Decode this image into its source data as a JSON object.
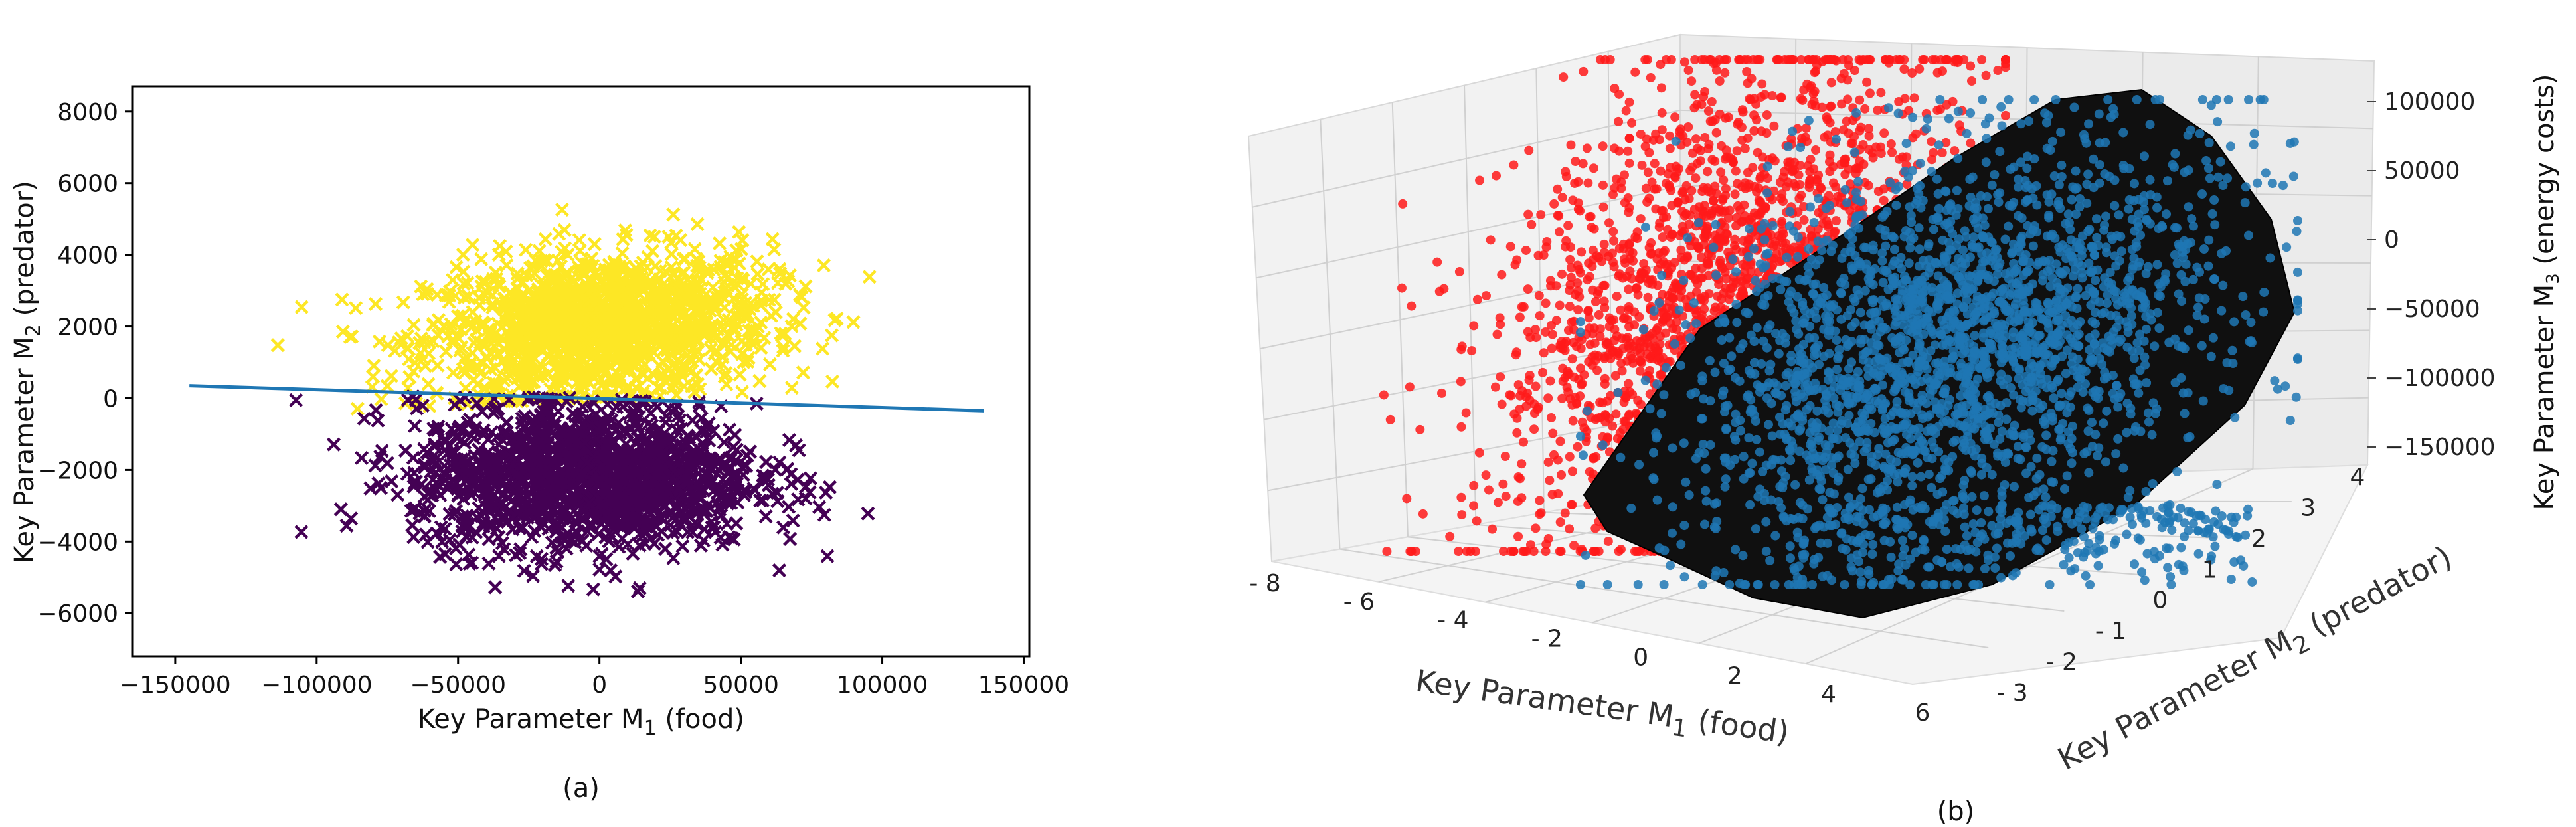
{
  "chart_data": [
    {
      "type": "scatter",
      "panel_label": "(a)",
      "xlabel": "Key Parameter M",
      "xlabel_sub": "1",
      "xlabel_suffix": " (food)",
      "ylabel": "Key Parameter M",
      "ylabel_sub": "2",
      "ylabel_suffix": " (predator)",
      "xlim": [
        -165000,
        152000
      ],
      "ylim": [
        -7200,
        8700
      ],
      "xticks": [
        -150000,
        -100000,
        -50000,
        0,
        50000,
        100000,
        150000
      ],
      "yticks": [
        -6000,
        -4000,
        -2000,
        0,
        2000,
        4000,
        6000,
        8000
      ],
      "xtick_labels": [
        "−150000",
        "−100000",
        "−50000",
        "0",
        "50000",
        "100000",
        "150000"
      ],
      "ytick_labels": [
        "−6000",
        "−4000",
        "−2000",
        "0",
        "2000",
        "4000",
        "6000",
        "8000"
      ],
      "marker": "x",
      "series": [
        {
          "name": "class 1 (above boundary)",
          "color": "#fde725",
          "n_points": 1500,
          "x_center": 0,
          "x_spread": 55000,
          "y_center": 2000,
          "y_spread": 1700,
          "side": "above"
        },
        {
          "name": "class 0 (below boundary)",
          "color": "#440154",
          "n_points": 1500,
          "x_center": -5000,
          "x_spread": 55000,
          "y_center": -2200,
          "y_spread": 1700,
          "side": "below"
        }
      ],
      "decision_boundary": {
        "color": "#1f77b4",
        "x": [
          -145000,
          136000
        ],
        "y": [
          350,
          -350
        ]
      }
    },
    {
      "type": "scatter3d",
      "panel_label": "(b)",
      "xlabel": "Key Parameter M",
      "xlabel_sub": "1",
      "xlabel_suffix": " (food)",
      "ylabel": "Key Parameter M",
      "ylabel_sub": "2",
      "ylabel_suffix": " (predator)",
      "zlabel": "Key Parameter M",
      "zlabel_sub": "3",
      "zlabel_suffix": " (energy costs)",
      "xticks": [
        -8,
        -6,
        -4,
        -2,
        0,
        2,
        4,
        6
      ],
      "xtick_labels": [
        "- 8",
        "- 6",
        "- 4",
        "- 2",
        "0",
        "2",
        "4",
        "6"
      ],
      "yticks": [
        -3,
        -2,
        -1,
        0,
        1,
        2,
        3,
        4
      ],
      "ytick_labels": [
        "- 3",
        "- 2",
        "- 1",
        "0",
        "1",
        "2",
        "3",
        "4"
      ],
      "zticks": [
        -150000,
        -100000,
        -50000,
        0,
        50000,
        100000
      ],
      "ztick_labels": [
        "−150000",
        "−100000",
        "−50000",
        "0",
        "50000",
        "100000"
      ],
      "series": [
        {
          "name": "red cluster",
          "color": "#ff1a1a",
          "n_points": 2200
        },
        {
          "name": "blue cluster",
          "color": "#1f77b4",
          "n_points": 2600
        }
      ],
      "surface": {
        "name": "separating surface",
        "color": "#111111"
      }
    }
  ]
}
